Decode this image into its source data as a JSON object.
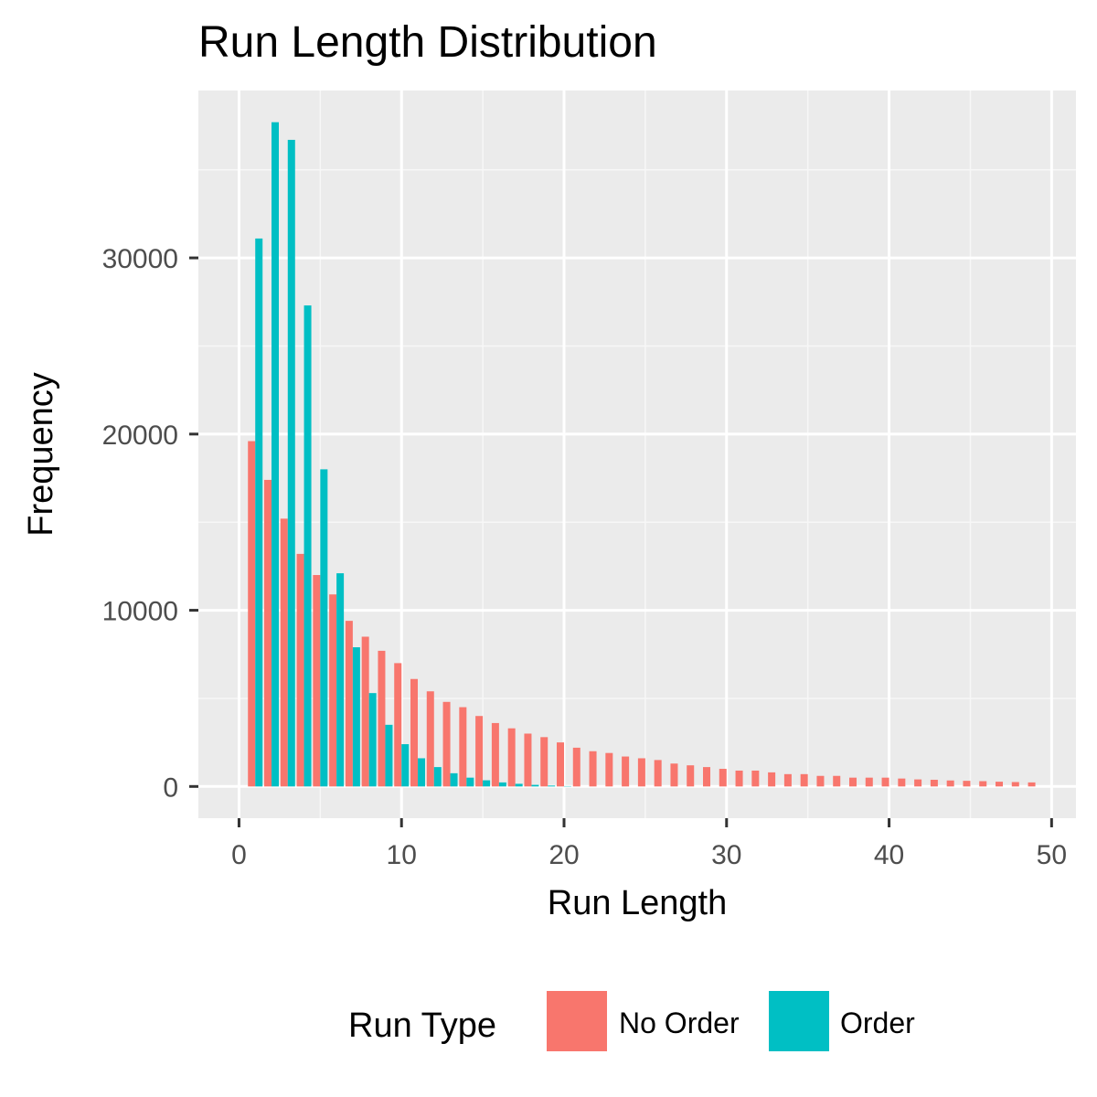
{
  "chart_data": {
    "type": "bar",
    "title": "Run Length Distribution",
    "xlabel": "Run Length",
    "ylabel": "Frequency",
    "xlim": [
      -2.5,
      51.5
    ],
    "ylim": [
      -1800,
      39500
    ],
    "x_ticks": [
      0,
      10,
      20,
      30,
      40,
      50
    ],
    "x_tick_labels": [
      "0",
      "10",
      "20",
      "30",
      "40",
      "50"
    ],
    "y_ticks": [
      0,
      10000,
      20000,
      30000
    ],
    "y_tick_labels": [
      "0",
      "10000",
      "20000",
      "30000"
    ],
    "grid": true,
    "legend": {
      "title": "Run Type",
      "position": "bottom",
      "entries": [
        {
          "name": "No Order",
          "color": "#F8766D"
        },
        {
          "name": "Order",
          "color": "#00BFC4"
        }
      ]
    },
    "series": [
      {
        "name": "No Order",
        "color": "#F8766D",
        "x": [
          1,
          2,
          3,
          4,
          5,
          6,
          7,
          8,
          9,
          10,
          11,
          12,
          13,
          14,
          15,
          16,
          17,
          18,
          19,
          20,
          21,
          22,
          23,
          24,
          25,
          26,
          27,
          28,
          29,
          30,
          31,
          32,
          33,
          34,
          35,
          36,
          37,
          38,
          39,
          40,
          41,
          42,
          43,
          44,
          45,
          46,
          47,
          48,
          49
        ],
        "values": [
          19600,
          17400,
          15200,
          13200,
          12000,
          10900,
          9400,
          8500,
          7700,
          7000,
          6100,
          5400,
          4800,
          4500,
          4000,
          3600,
          3300,
          3000,
          2800,
          2500,
          2200,
          2000,
          1900,
          1700,
          1600,
          1500,
          1300,
          1200,
          1100,
          1000,
          900,
          900,
          800,
          700,
          700,
          600,
          600,
          500,
          500,
          500,
          450,
          400,
          380,
          340,
          320,
          300,
          270,
          250,
          230
        ]
      },
      {
        "name": "Order",
        "color": "#00BFC4",
        "x": [
          1,
          2,
          3,
          4,
          5,
          6,
          7,
          8,
          9,
          10,
          11,
          12,
          13,
          14,
          15,
          16,
          17,
          18,
          19,
          20
        ],
        "values": [
          31100,
          37700,
          36700,
          27300,
          18000,
          12100,
          7900,
          5300,
          3500,
          2400,
          1600,
          1100,
          750,
          500,
          350,
          230,
          150,
          90,
          50,
          20
        ]
      }
    ],
    "colors": {
      "panel_background": "#EBEBEB",
      "grid_major": "#FFFFFF",
      "grid_minor": "#F7F7F7",
      "axis_tick": "#333333"
    }
  }
}
